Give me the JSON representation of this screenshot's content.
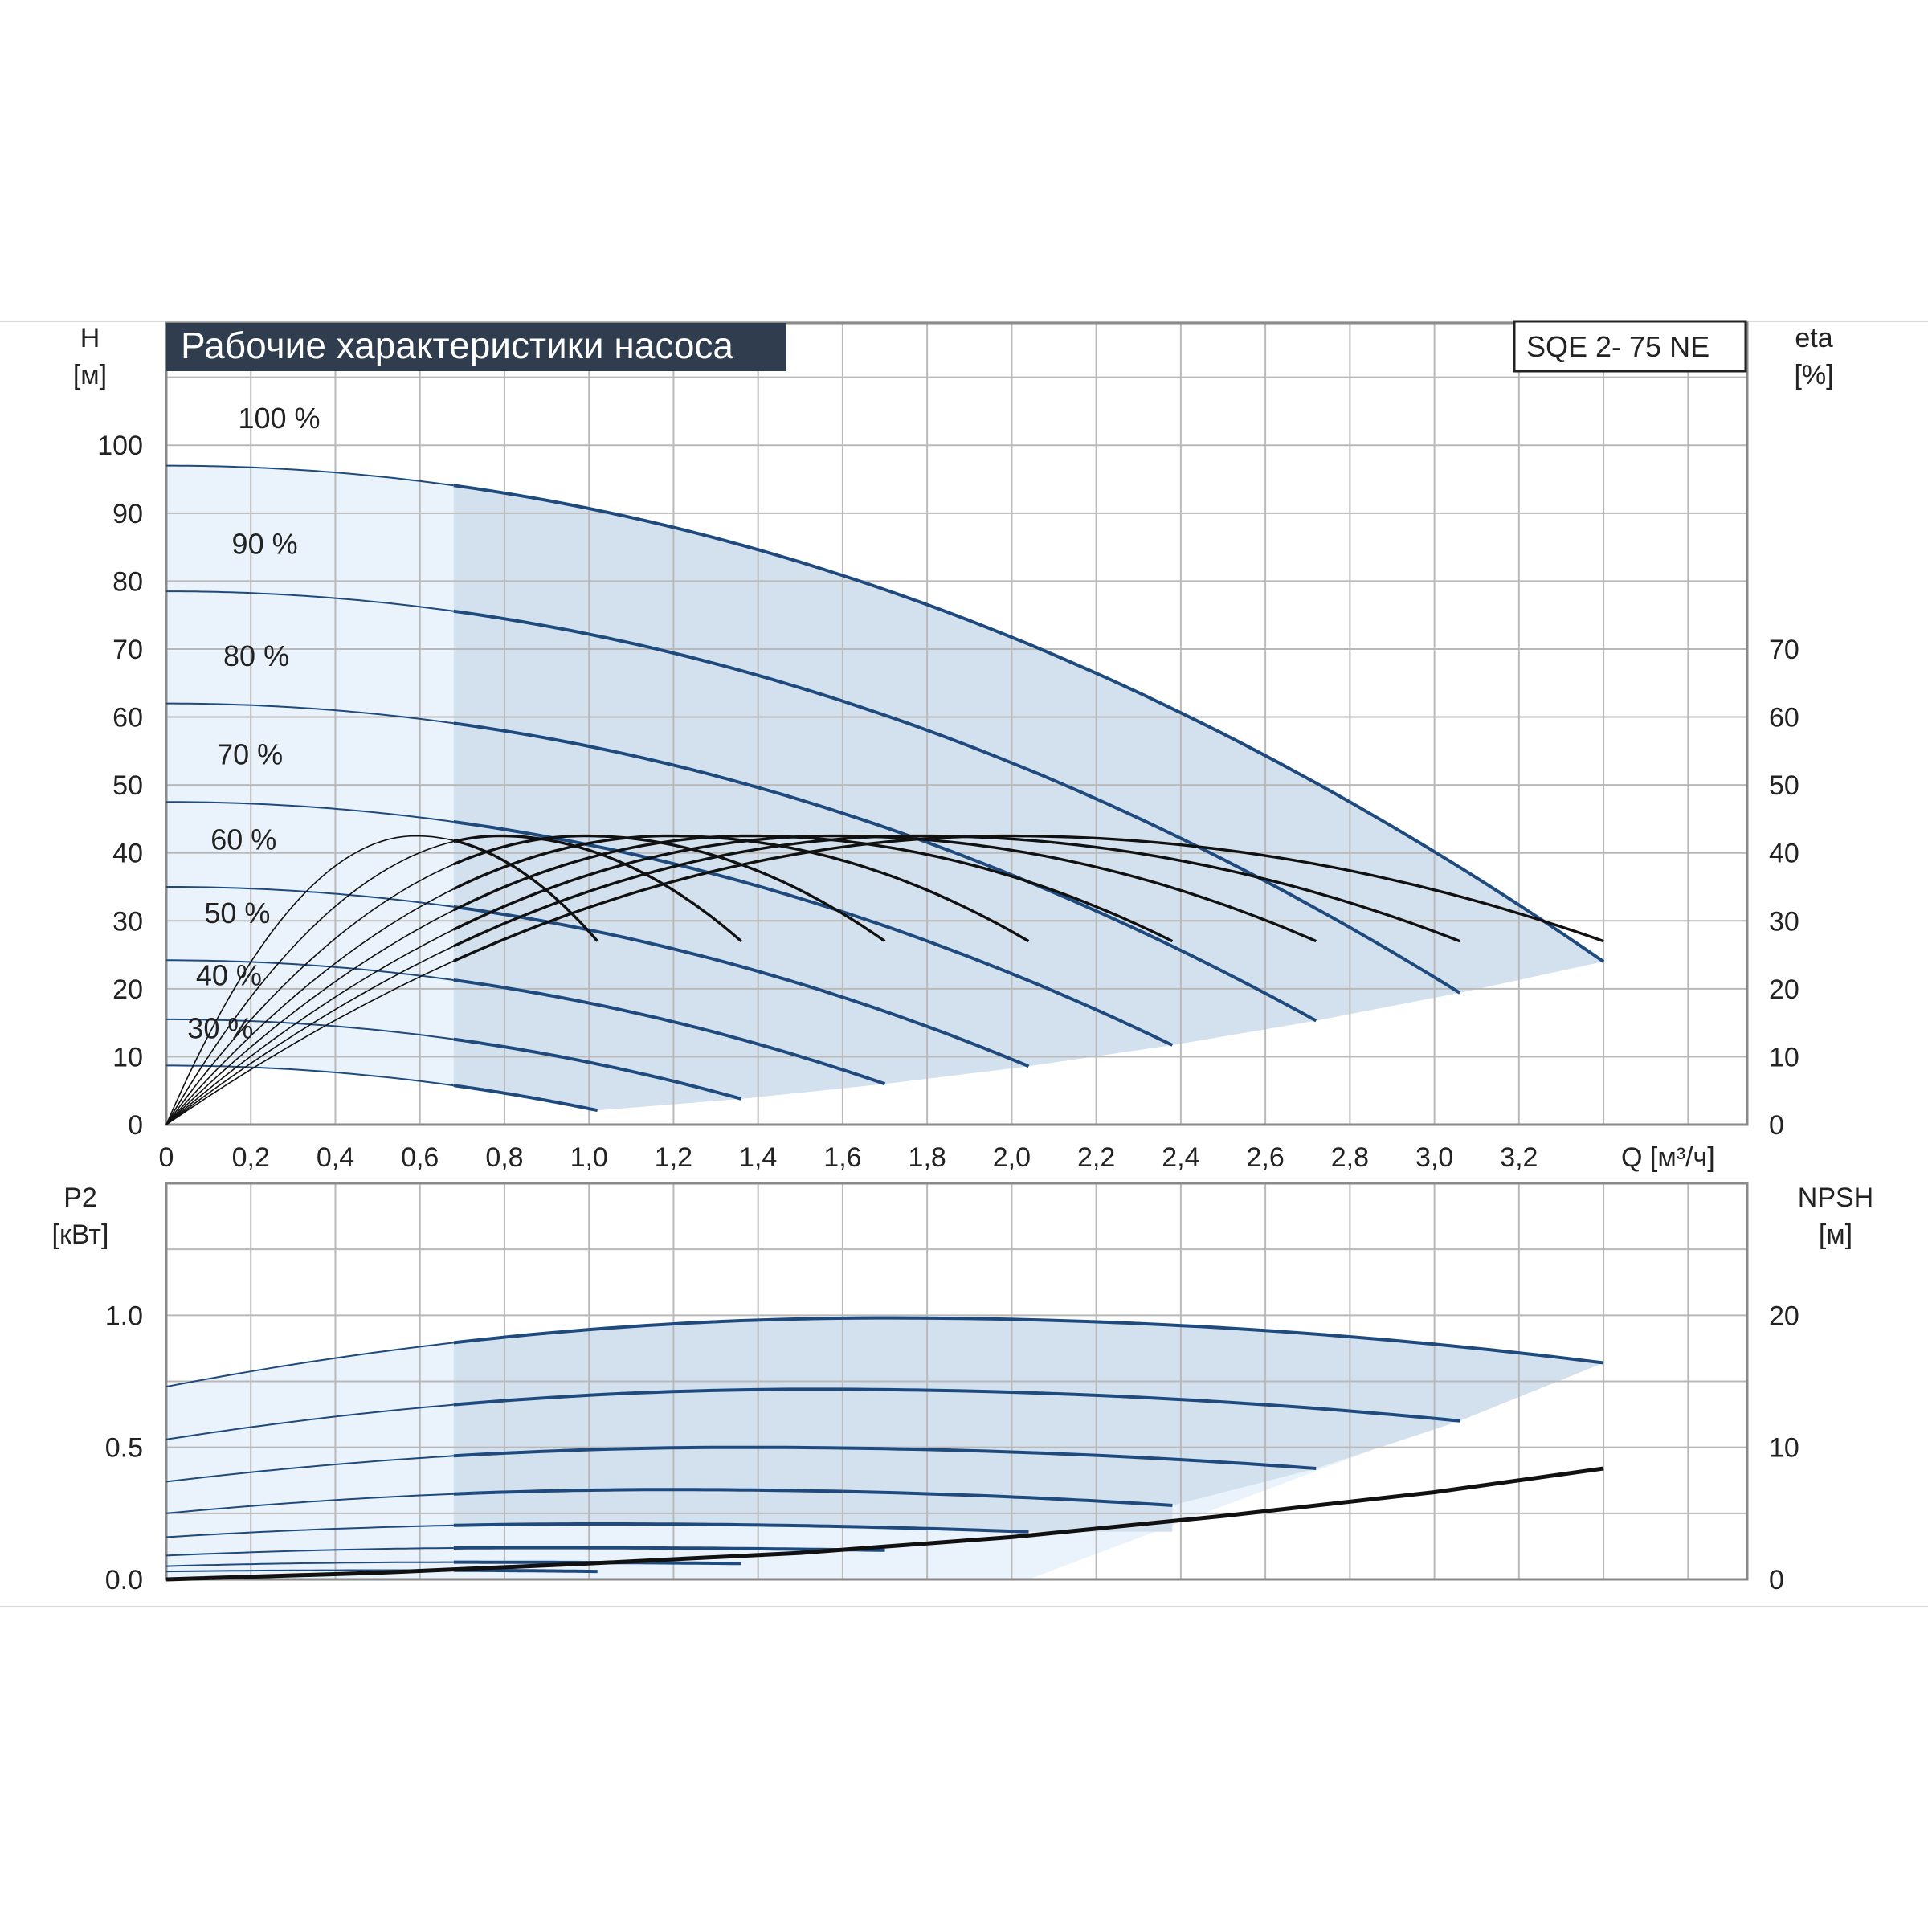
{
  "chart_data": [
    {
      "type": "line",
      "title": "Рабочие характеристики насоса",
      "model_label": "SQE 2- 75 NE",
      "xlabel": "Q [м³/ч]",
      "ylabel_name": "H",
      "ylabel_unit": "[м]",
      "y2label_name": "eta",
      "y2label_unit": "[%]",
      "xlim": [
        0,
        3.74
      ],
      "ylim": [
        0,
        118
      ],
      "x_ticks": [
        "0",
        "0,2",
        "0,4",
        "0,6",
        "0,8",
        "1,0",
        "1,2",
        "1,4",
        "1,6",
        "1,8",
        "2,0",
        "2,2",
        "2,4",
        "2,6",
        "2,8",
        "3,0",
        "3,2"
      ],
      "y_ticks": [
        "0",
        "10",
        "20",
        "30",
        "40",
        "50",
        "60",
        "70",
        "80",
        "90",
        "100"
      ],
      "y2_ticks": [
        "0",
        "10",
        "20",
        "30",
        "40",
        "50",
        "60",
        "70"
      ],
      "grid": true,
      "shaded_region_q_start": 0.68,
      "colors": {
        "head_curve": "#1f4a7d",
        "eta_curve": "#111111",
        "fill_light": "#eaf3fb",
        "fill_dark": "#d3e1ef",
        "grid": "#b9b9b9",
        "title_bg": "#2f3d4f"
      },
      "series": [
        {
          "name": "100 %",
          "label": "100 %",
          "h0": 97,
          "qmax": 3.4,
          "hend": 24,
          "eta_peak_q": 1.99
        },
        {
          "name": "90 %",
          "label": "90 %",
          "h0": 78.5,
          "qmax": 3.06,
          "hend": 19.4,
          "eta_peak_q": 1.78
        },
        {
          "name": "80 %",
          "label": "80 %",
          "h0": 62,
          "qmax": 2.72,
          "hend": 15.3,
          "eta_peak_q": 1.58
        },
        {
          "name": "70 %",
          "label": "70 %",
          "h0": 47.5,
          "qmax": 2.38,
          "hend": 11.7,
          "eta_peak_q": 1.38
        },
        {
          "name": "60 %",
          "label": "60 %",
          "h0": 35,
          "qmax": 2.04,
          "hend": 8.6,
          "eta_peak_q": 1.19
        },
        {
          "name": "50 %",
          "label": "50 %",
          "h0": 24.2,
          "qmax": 1.7,
          "hend": 6.0,
          "eta_peak_q": 0.99
        },
        {
          "name": "40 %",
          "label": "40 %",
          "h0": 15.5,
          "qmax": 1.36,
          "hend": 3.8,
          "eta_peak_q": 0.79
        },
        {
          "name": "30 %",
          "label": "30 %",
          "h0": 8.7,
          "qmax": 1.02,
          "hend": 2.1,
          "eta_peak_q": 0.59
        }
      ],
      "eta_peak": 42.5,
      "eta_end": 27
    },
    {
      "type": "line",
      "ylabel_name": "P2",
      "ylabel_unit": "[кВт]",
      "y2label_name": "NPSH",
      "y2label_unit": "[м]",
      "xlim": [
        0,
        3.74
      ],
      "ylim": [
        0,
        1.5
      ],
      "y2lim": [
        0,
        30
      ],
      "y_ticks": [
        "0.0",
        "0.5",
        "1.0"
      ],
      "y2_ticks": [
        "0",
        "10",
        "20"
      ],
      "grid": true,
      "power_series": [
        {
          "speed": "100 %",
          "p0": 0.73,
          "pmax": 0.99,
          "qmax": 3.4,
          "pend": 0.82
        },
        {
          "speed": "90 %",
          "p0": 0.53,
          "pmax": 0.72,
          "qmax": 3.06,
          "pend": 0.6
        },
        {
          "speed": "80 %",
          "p0": 0.37,
          "pmax": 0.5,
          "qmax": 2.72,
          "pend": 0.42
        },
        {
          "speed": "70 %",
          "p0": 0.25,
          "pmax": 0.34,
          "qmax": 2.38,
          "pend": 0.28
        },
        {
          "speed": "60 %",
          "p0": 0.16,
          "pmax": 0.21,
          "qmax": 2.04,
          "pend": 0.18
        },
        {
          "speed": "50 %",
          "p0": 0.09,
          "pmax": 0.12,
          "qmax": 1.7,
          "pend": 0.11
        },
        {
          "speed": "40 %",
          "p0": 0.05,
          "pmax": 0.065,
          "qmax": 1.36,
          "pend": 0.06
        },
        {
          "speed": "30 %",
          "p0": 0.03,
          "pmax": 0.035,
          "qmax": 1.02,
          "pend": 0.03
        }
      ],
      "npsh": [
        [
          0,
          0
        ],
        [
          0.5,
          0.5
        ],
        [
          1.0,
          1.2
        ],
        [
          1.5,
          2.0
        ],
        [
          2.0,
          3.2
        ],
        [
          2.5,
          4.8
        ],
        [
          3.0,
          6.6
        ],
        [
          3.4,
          8.4
        ]
      ]
    }
  ]
}
